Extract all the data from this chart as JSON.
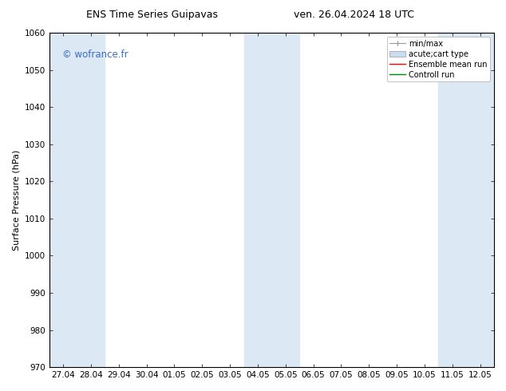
{
  "title_left": "ENS Time Series Guipavas",
  "title_right": "ven. 26.04.2024 18 UTC",
  "ylabel": "Surface Pressure (hPa)",
  "ylim": [
    970,
    1060
  ],
  "yticks": [
    970,
    980,
    990,
    1000,
    1010,
    1020,
    1030,
    1040,
    1050,
    1060
  ],
  "x_labels": [
    "27.04",
    "28.04",
    "29.04",
    "30.04",
    "01.05",
    "02.05",
    "03.05",
    "04.05",
    "05.05",
    "06.05",
    "07.05",
    "08.05",
    "09.05",
    "10.05",
    "11.05",
    "12.05"
  ],
  "watermark": "© wofrance.fr",
  "watermark_color": "#3a6bc8",
  "bg_color": "#ffffff",
  "plot_bg_color": "#ffffff",
  "shaded_band_color": "#dce9f5",
  "font_size_title": 9,
  "font_size_axis": 7.5,
  "font_size_watermark": 8.5,
  "font_size_ylabel": 8,
  "font_size_legend": 7
}
